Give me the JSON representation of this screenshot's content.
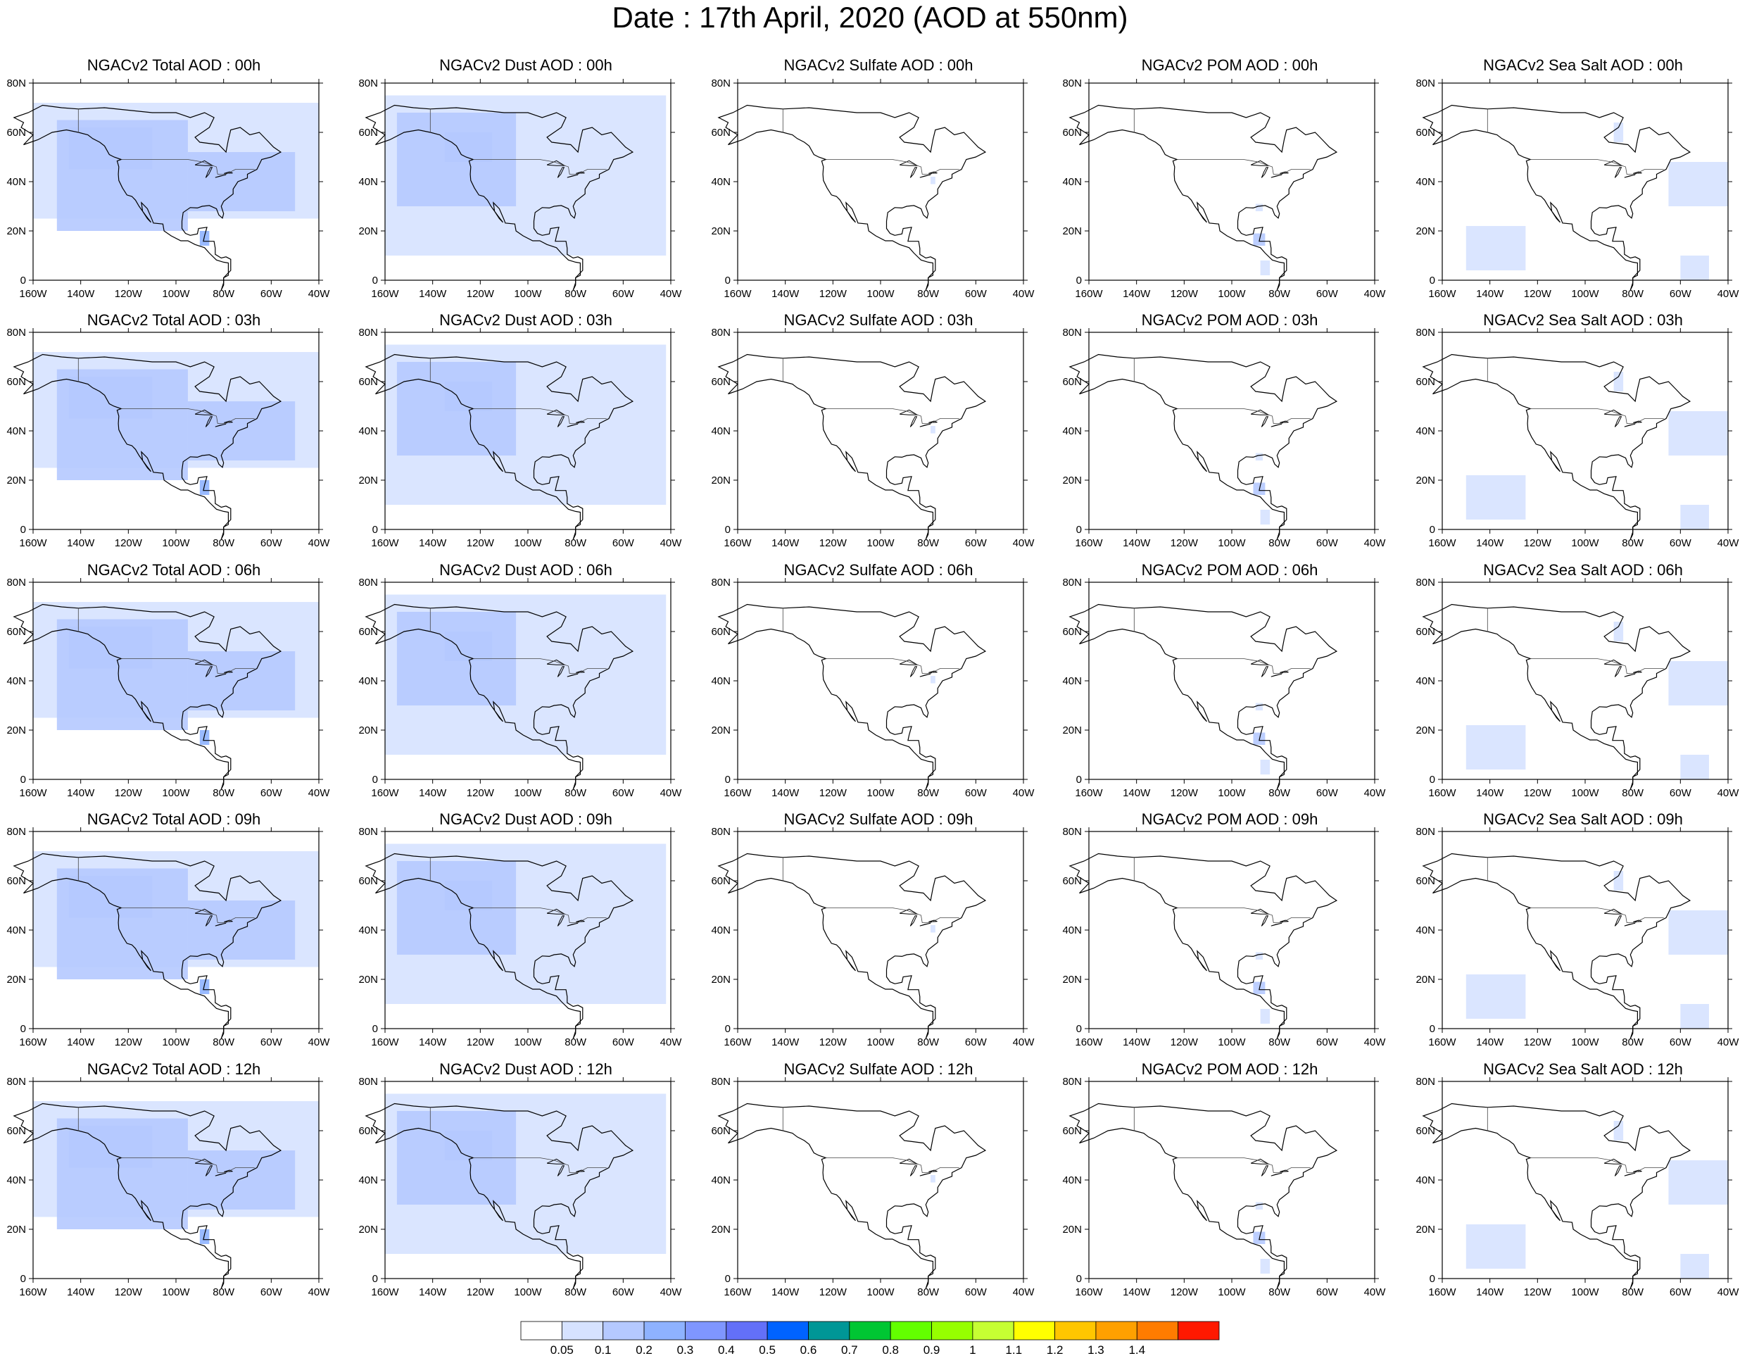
{
  "title": "Date : 17th April, 2020 (AOD at 550nm)",
  "species": [
    {
      "key": "total",
      "titles": [
        "NGACv2 Total AOD : 00h",
        "NGACv2 Total AOD : 03h",
        "NGACv2 Total AOD : 06h",
        "NGACv2 Total AOD : 09h",
        "NGACv2 Total AOD  : 12h"
      ]
    },
    {
      "key": "dust",
      "titles": [
        "NGACv2 Dust AOD : 00h",
        "NGACv2 Dust AOD : 03h",
        "NGACv2 Dust AOD : 06h",
        "NGACv2 Dust AOD : 09h",
        "NGACv2 Dust AOD : 12h"
      ]
    },
    {
      "key": "sulfate",
      "titles": [
        "NGACv2 Sulfate AOD : 00h",
        "NGACv2 Sulfate AOD : 03h",
        "NGACv2 Sulfate AOD : 06h",
        "NGACv2 Sulfate AOD : 09h",
        "NGACv2 Sulfate AOD : 12h"
      ]
    },
    {
      "key": "pom",
      "titles": [
        "NGACv2 POM AOD : 00h",
        "NGACv2 POM AOD : 03h",
        "NGACv2 POM AOD : 06h",
        "NGACv2 POM AOD : 09h",
        "NGACv2 POM  AOD : 12h"
      ]
    },
    {
      "key": "seasalt",
      "titles": [
        "NGACv2 Sea Salt AOD : 00h",
        "NGACv2 Sea Salt AOD : 03h",
        "NGACv2 Sea Salt AOD : 06h",
        "NGACv2 Sea Salt  AOD : 09h",
        "NGACv2 Sea Salt  AOD : 12h"
      ]
    }
  ],
  "axes": {
    "lon_labels": [
      "160W",
      "140W",
      "120W",
      "100W",
      "80W",
      "60W",
      "40W"
    ],
    "lat_labels": [
      "0",
      "20N",
      "40N",
      "60N",
      "80N"
    ],
    "lon_range": [
      -160,
      -40
    ],
    "lat_range": [
      0,
      80
    ]
  },
  "colorbar": {
    "colors": [
      "#ffffff",
      "#d6e2ff",
      "#b5c9ff",
      "#8eb2ff",
      "#7f96ff",
      "#6370f8",
      "#0063ff",
      "#009696",
      "#00c633",
      "#63ff00",
      "#96ff00",
      "#c6ff33",
      "#ffff00",
      "#ffc600",
      "#ffa000",
      "#ff7c00",
      "#ff1900"
    ],
    "labels": [
      "0.05",
      "0.1",
      "0.2",
      "0.3",
      "0.4",
      "0.5",
      "0.6",
      "0.7",
      "0.8",
      "0.9",
      "1",
      "1.1",
      "1.2",
      "1.3",
      "1.4"
    ]
  }
}
